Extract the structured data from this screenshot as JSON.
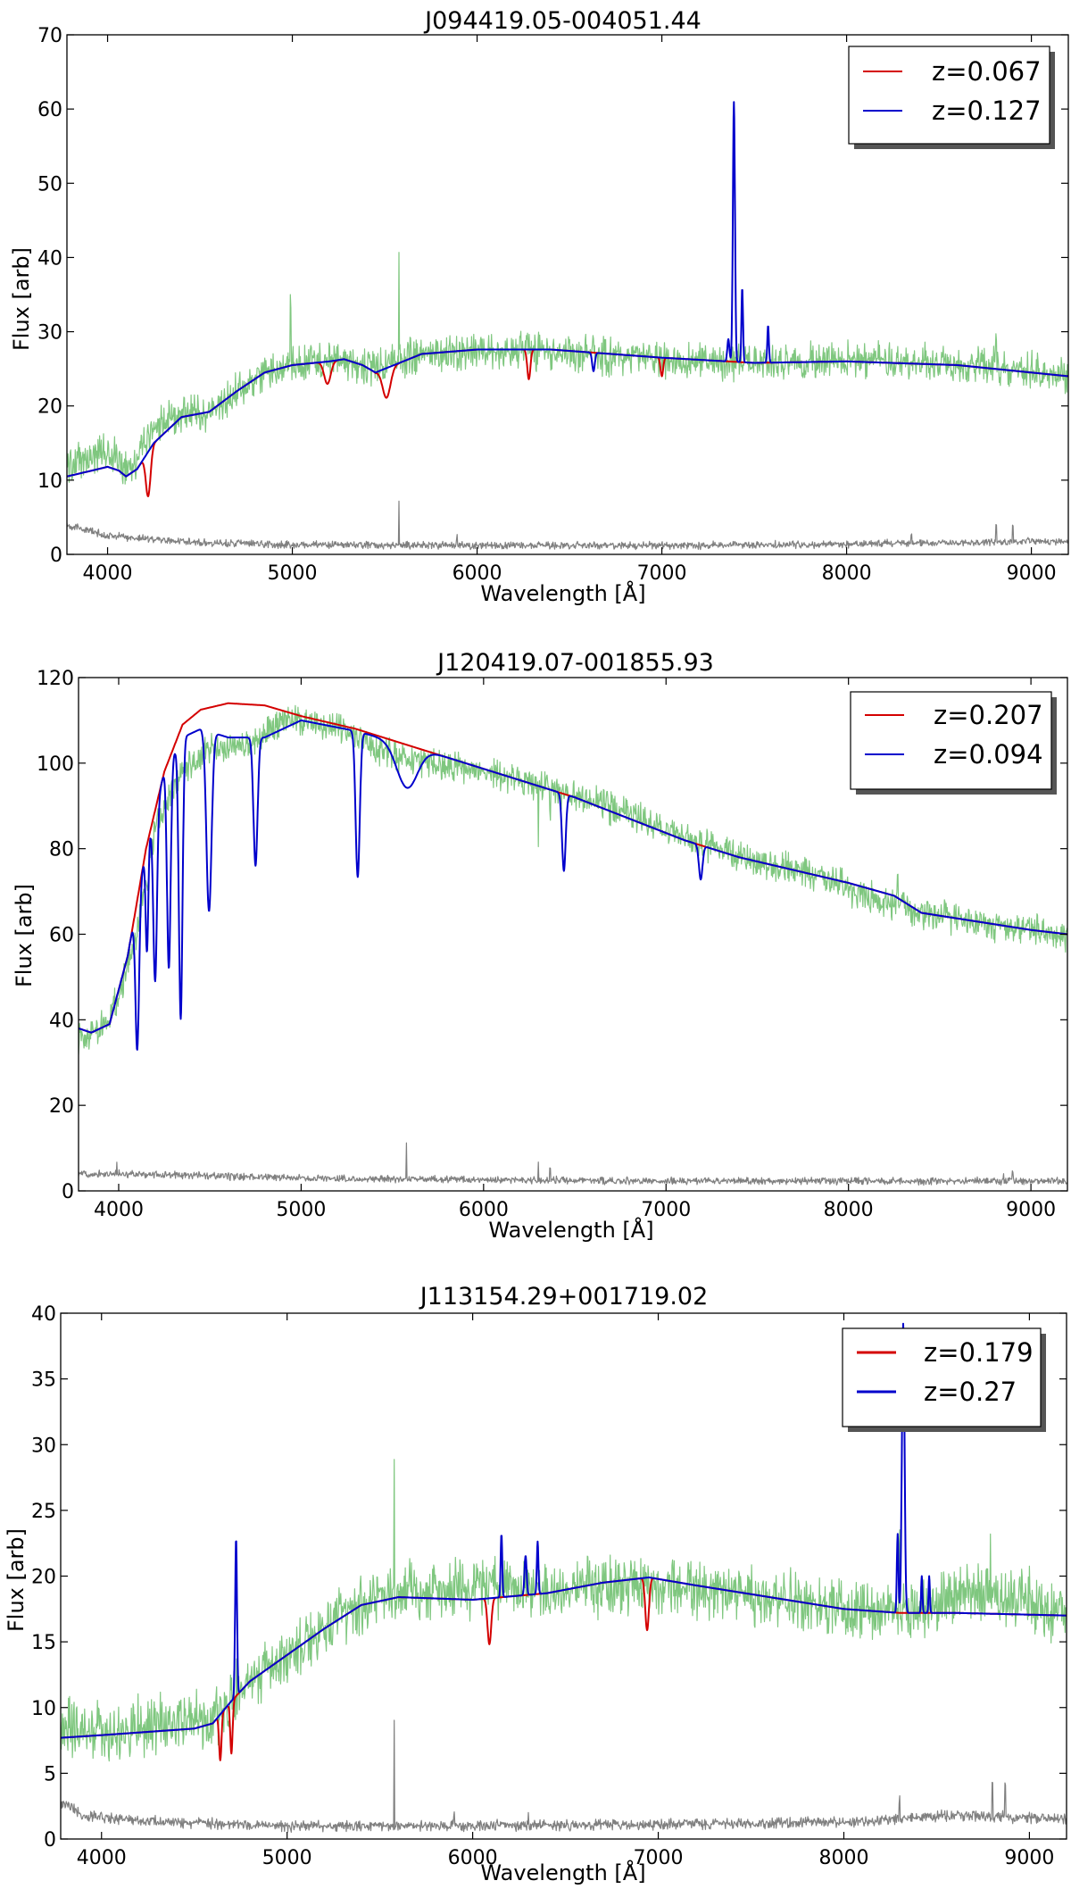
{
  "figure": {
    "colors": {
      "observed": "#7fc77f",
      "error": "#808080",
      "template_red": "#d40000",
      "template_blue": "#0000cc"
    }
  },
  "chart_data": [
    {
      "type": "line",
      "title": "J094419.05-004051.44",
      "xlabel": "Wavelength [Å]",
      "ylabel": "Flux [arb]",
      "xlim": [
        3780,
        9200
      ],
      "ylim": [
        0,
        70
      ],
      "xticks": [
        4000,
        5000,
        6000,
        7000,
        8000,
        9000
      ],
      "yticks": [
        0,
        10,
        20,
        30,
        40,
        50,
        60,
        70
      ],
      "legend": {
        "position": "top-right",
        "entries": [
          {
            "label": "z=0.067",
            "color": "#d40000"
          },
          {
            "label": "z=0.127",
            "color": "#0000cc"
          }
        ]
      },
      "series": [
        {
          "role": "observed",
          "color": "#7fc77f",
          "noise": 1.5,
          "spikes": [
            [
              4990,
              7
            ],
            [
              5577,
              12
            ],
            [
              7500,
              4
            ],
            [
              8810,
              4
            ]
          ],
          "x": [
            3780,
            3900,
            4000,
            4080,
            4150,
            4250,
            4400,
            4550,
            4700,
            4900,
            5100,
            5250,
            5400,
            5500,
            5700,
            6000,
            6300,
            6600,
            7000,
            7400,
            7700,
            8000,
            8400,
            8800,
            9200
          ],
          "y": [
            12,
            13,
            14,
            12,
            12.5,
            17,
            19,
            19,
            22,
            25,
            26,
            26,
            25,
            25.5,
            27,
            27.5,
            27.5,
            27,
            26,
            26,
            25.5,
            26.5,
            26,
            25.5,
            24
          ]
        },
        {
          "role": "error",
          "color": "#808080",
          "noise": 0.3,
          "spikes": [
            [
              5577,
              6
            ],
            [
              5890,
              1
            ],
            [
              8350,
              1.2
            ],
            [
              8810,
              2.5
            ],
            [
              8900,
              2
            ]
          ],
          "x": [
            3780,
            4000,
            4500,
            5000,
            6000,
            7000,
            8000,
            8500,
            9200
          ],
          "y": [
            4,
            2.5,
            1.6,
            1.3,
            1.2,
            1.2,
            1.4,
            1.6,
            1.8
          ]
        },
        {
          "role": "template",
          "name": "z=0.067",
          "color": "#d40000",
          "dips": [
            [
              4220,
              6,
              18
            ],
            [
              5190,
              3,
              25
            ],
            [
              5510,
              4,
              30
            ],
            [
              6280,
              4,
              12
            ],
            [
              7000,
              2.5,
              10
            ]
          ],
          "peaks": [],
          "x": [
            3780,
            3900,
            4000,
            4060,
            4100,
            4160,
            4250,
            4400,
            4550,
            4700,
            4850,
            5000,
            5200,
            5280,
            5380,
            5450,
            5550,
            5700,
            6000,
            6400,
            7000,
            7500,
            8000,
            8600,
            9200
          ],
          "y": [
            10.5,
            11.2,
            11.8,
            11.3,
            10.5,
            11.5,
            15,
            18.5,
            19.2,
            22,
            24.5,
            25.5,
            26,
            26.3,
            25.5,
            24.5,
            25.5,
            27,
            27.6,
            27.6,
            26.5,
            25.8,
            26,
            25.5,
            24
          ]
        },
        {
          "role": "template",
          "name": "z=0.127",
          "color": "#0000cc",
          "dips": [
            [
              6630,
              2.5,
              10
            ]
          ],
          "peaks": [
            [
              7390,
              35,
              8
            ],
            [
              7435,
              10,
              6
            ],
            [
              7575,
              5,
              6
            ],
            [
              7360,
              3,
              8
            ]
          ],
          "x": [
            3780,
            3900,
            4000,
            4060,
            4100,
            4160,
            4250,
            4400,
            4550,
            4700,
            4850,
            5000,
            5200,
            5280,
            5380,
            5450,
            5550,
            5700,
            6000,
            6400,
            7000,
            7500,
            8000,
            8600,
            9200
          ],
          "y": [
            10.5,
            11.2,
            11.8,
            11.3,
            10.5,
            11.5,
            15,
            18.5,
            19.2,
            22,
            24.5,
            25.5,
            26,
            26.3,
            25.5,
            24.5,
            25.5,
            27,
            27.6,
            27.6,
            26.5,
            25.8,
            26,
            25.5,
            24
          ]
        }
      ]
    },
    {
      "type": "line",
      "title": "J120419.07-001855.93",
      "xlabel": "Wavelength [Å]",
      "ylabel": "Flux [arb]",
      "xlim": [
        3780,
        9200
      ],
      "ylim": [
        0,
        120
      ],
      "xticks": [
        4000,
        5000,
        6000,
        7000,
        8000,
        9000
      ],
      "yticks": [
        0,
        20,
        40,
        60,
        80,
        100,
        120
      ],
      "legend": {
        "position": "top-right",
        "entries": [
          {
            "label": "z=0.207",
            "color": "#d40000"
          },
          {
            "label": "z=0.094",
            "color": "#0000cc"
          }
        ]
      },
      "series": [
        {
          "role": "observed",
          "color": "#7fc77f",
          "noise": 2.2,
          "spikes": [
            [
              5577,
              -4
            ],
            [
              6300,
              -12
            ],
            [
              6364,
              -5
            ],
            [
              7185,
              6
            ],
            [
              8270,
              5
            ]
          ],
          "x": [
            3780,
            3900,
            4000,
            4100,
            4200,
            4350,
            4500,
            4700,
            4900,
            5100,
            5300,
            5500,
            5700,
            6000,
            6300,
            6600,
            6900,
            7200,
            7500,
            7800,
            8100,
            8400,
            8700,
            9000,
            9200
          ],
          "y": [
            36,
            38,
            45,
            60,
            85,
            98,
            103,
            104,
            110,
            109,
            106,
            102,
            100,
            98,
            95,
            91,
            86,
            81,
            77,
            74,
            69,
            65,
            63,
            61,
            59
          ]
        },
        {
          "role": "error",
          "color": "#808080",
          "noise": 0.5,
          "spikes": [
            [
              3990,
              2
            ],
            [
              5577,
              9
            ],
            [
              6300,
              4
            ],
            [
              6364,
              3
            ],
            [
              8850,
              2
            ],
            [
              8900,
              2
            ]
          ],
          "x": [
            3780,
            4000,
            4500,
            5000,
            6000,
            7000,
            8000,
            9200
          ],
          "y": [
            4,
            4,
            3.5,
            3,
            2.6,
            2.3,
            2.3,
            2.3
          ]
        },
        {
          "role": "template",
          "name": "z=0.207",
          "color": "#d40000",
          "dips": [],
          "peaks": [],
          "x": [
            3780,
            3850,
            3950,
            4050,
            4150,
            4250,
            4350,
            4450,
            4600,
            4800,
            5000,
            5300,
            5600,
            5900,
            6200,
            6500,
            6800,
            7100,
            7400,
            7700,
            8000,
            8250,
            8400,
            8700,
            9000,
            9200
          ],
          "y": [
            38,
            37,
            39,
            55,
            80,
            98,
            109,
            112.5,
            114,
            113.5,
            111,
            108,
            104,
            100,
            96,
            92,
            87,
            82,
            78,
            75,
            72,
            69,
            65,
            63,
            61,
            60
          ]
        },
        {
          "role": "template",
          "name": "z=0.094",
          "color": "#0000cc",
          "dips": [
            [
              4102,
              35,
              14
            ],
            [
              4155,
              25,
              10
            ],
            [
              4200,
              40,
              14
            ],
            [
              4275,
              48,
              14
            ],
            [
              4340,
              65,
              14
            ],
            [
              4495,
              42,
              20
            ],
            [
              4750,
              30,
              16
            ],
            [
              5310,
              34,
              16
            ],
            [
              5580,
              10,
              80
            ],
            [
              6440,
              18,
              14
            ],
            [
              7190,
              8,
              14
            ]
          ],
          "peaks": [],
          "x": [
            3780,
            3850,
            3950,
            4050,
            4150,
            4250,
            4350,
            4450,
            4600,
            4800,
            5000,
            5300,
            5600,
            5900,
            6200,
            6500,
            6800,
            7100,
            7400,
            7700,
            8000,
            8250,
            8400,
            8700,
            9000,
            9200
          ],
          "y": [
            38,
            37,
            39,
            55,
            80,
            98,
            106,
            108,
            106,
            106,
            110,
            107.5,
            104,
            100,
            96,
            92,
            87,
            82,
            78,
            75,
            72,
            69,
            65,
            63,
            61,
            60
          ]
        }
      ]
    },
    {
      "type": "line",
      "title": "J113154.29+001719.02",
      "xlabel": "Wavelength [Å]",
      "ylabel": "Flux [arb]",
      "xlim": [
        3780,
        9200
      ],
      "ylim": [
        0,
        40
      ],
      "xticks": [
        4000,
        5000,
        6000,
        7000,
        8000,
        9000
      ],
      "yticks": [
        0,
        5,
        10,
        15,
        20,
        25,
        30,
        35,
        40
      ],
      "legend": {
        "position": "top-right",
        "entries": [
          {
            "label": "z=0.179",
            "color": "#d40000"
          },
          {
            "label": "z=0.27",
            "color": "#0000cc"
          }
        ]
      },
      "series": [
        {
          "role": "observed",
          "color": "#7fc77f",
          "noise": 1.3,
          "spikes": [
            [
              5577,
              10
            ],
            [
              8300,
              4
            ],
            [
              8790,
              5
            ],
            [
              9000,
              3
            ]
          ],
          "x": [
            3780,
            4000,
            4200,
            4400,
            4600,
            4700,
            4900,
            5100,
            5300,
            5500,
            5700,
            6000,
            6300,
            6600,
            6900,
            7200,
            7500,
            7800,
            8100,
            8400,
            8700,
            9000,
            9200
          ],
          "y": [
            8.5,
            8,
            8.5,
            9,
            9,
            11,
            13,
            15,
            17,
            18.5,
            19,
            19,
            19,
            19,
            19.5,
            19,
            18.5,
            18,
            17.5,
            17.5,
            19,
            18,
            17
          ]
        },
        {
          "role": "error",
          "color": "#808080",
          "noise": 0.25,
          "spikes": [
            [
              5577,
              8
            ],
            [
              5900,
              1
            ],
            [
              6300,
              1.2
            ],
            [
              8300,
              1.5
            ],
            [
              8800,
              2.5
            ],
            [
              8870,
              2.5
            ]
          ],
          "x": [
            3780,
            3900,
            4100,
            4500,
            5000,
            6000,
            7000,
            8000,
            8600,
            9200
          ],
          "y": [
            2.8,
            1.8,
            1.5,
            1.2,
            1,
            1,
            1.1,
            1.3,
            1.8,
            1.5
          ]
        },
        {
          "role": "template",
          "name": "z=0.179",
          "color": "#d40000",
          "dips": [
            [
              4640,
              3.5,
              9
            ],
            [
              4700,
              4,
              9
            ],
            [
              6090,
              3.5,
              14
            ],
            [
              6940,
              4,
              14
            ]
          ],
          "peaks": [],
          "x": [
            3780,
            4000,
            4300,
            4500,
            4600,
            4700,
            4800,
            5000,
            5200,
            5400,
            5600,
            6000,
            6400,
            6700,
            6950,
            7200,
            7600,
            8000,
            8300,
            8600,
            9200
          ],
          "y": [
            7.7,
            7.9,
            8.2,
            8.4,
            8.8,
            10.5,
            12,
            14,
            16,
            17.8,
            18.4,
            18.2,
            18.7,
            19.5,
            19.9,
            19.3,
            18.4,
            17.5,
            17.2,
            17.2,
            17
          ]
        },
        {
          "role": "template",
          "name": "z=0.27",
          "color": "#0000cc",
          "dips": [],
          "peaks": [
            [
              4725,
              12,
              7
            ],
            [
              6155,
              4.8,
              6
            ],
            [
              6285,
              3,
              8
            ],
            [
              6350,
              4,
              6
            ],
            [
              8320,
              22,
              10
            ],
            [
              8290,
              6,
              6
            ],
            [
              8420,
              2.8,
              5
            ],
            [
              8460,
              2.8,
              5
            ]
          ],
          "x": [
            3780,
            4000,
            4300,
            4500,
            4600,
            4700,
            4800,
            5000,
            5200,
            5400,
            5600,
            6000,
            6400,
            6700,
            6950,
            7200,
            7600,
            8000,
            8300,
            8600,
            9200
          ],
          "y": [
            7.7,
            7.9,
            8.2,
            8.4,
            8.8,
            10.5,
            12,
            14,
            16,
            17.8,
            18.4,
            18.2,
            18.7,
            19.5,
            19.9,
            19.3,
            18.4,
            17.5,
            17.2,
            17.2,
            17
          ]
        }
      ]
    }
  ]
}
